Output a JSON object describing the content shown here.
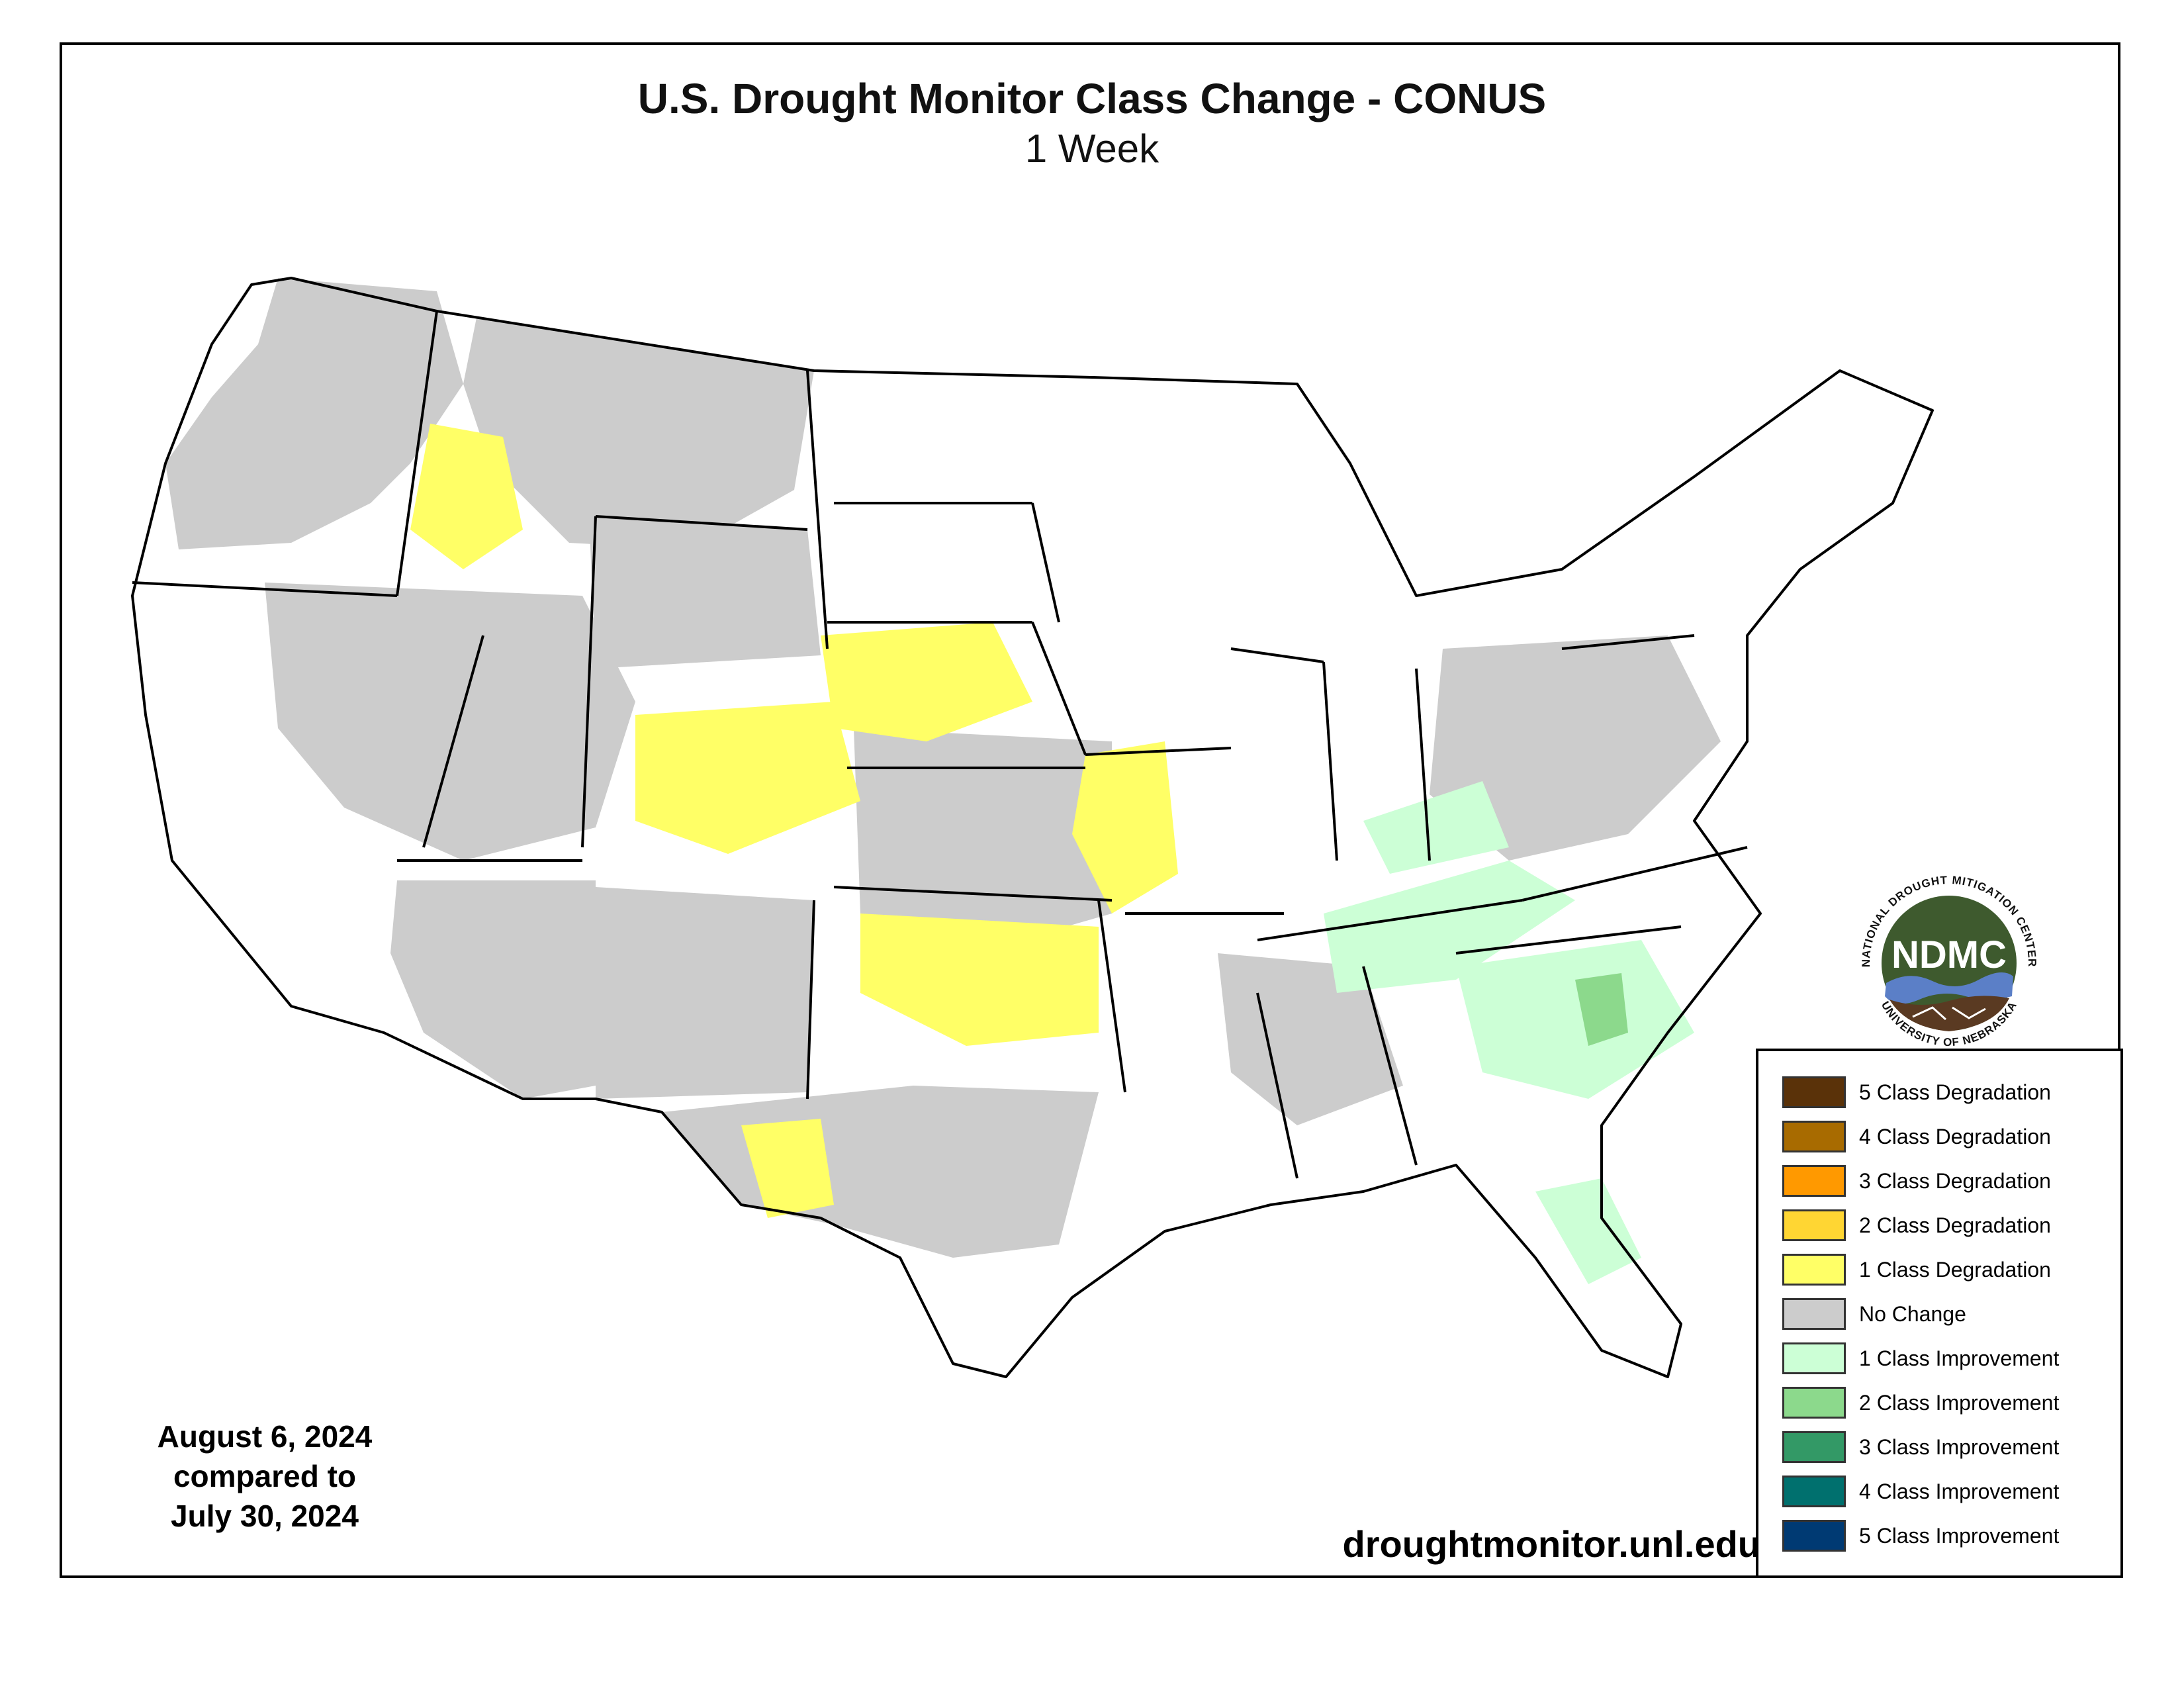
{
  "title": "U.S. Drought Monitor Class Change - CONUS",
  "subtitle": "1 Week",
  "date_block": {
    "line1": "August 6, 2024",
    "line2": "compared to",
    "line3": "July 30, 2024"
  },
  "website": "droughtmonitor.unl.edu",
  "logo": {
    "acronym": "NDMC",
    "ring_top": "NATIONAL DROUGHT MITIGATION CENTER",
    "ring_bottom": "UNIVERSITY OF NEBRASKA",
    "colors": {
      "green": "#3e5a2e",
      "blue": "#5b7fc7",
      "brown": "#5a3a22"
    }
  },
  "legend": [
    {
      "label": "5 Class Degradation",
      "color": "#5a3209"
    },
    {
      "label": "4 Class Degradation",
      "color": "#a86b00"
    },
    {
      "label": "3 Class Degradation",
      "color": "#ff9900"
    },
    {
      "label": "2 Class Degradation",
      "color": "#ffd633"
    },
    {
      "label": "1 Class Degradation",
      "color": "#ffff66"
    },
    {
      "label": "No Change",
      "color": "#cccccc"
    },
    {
      "label": "1 Class Improvement",
      "color": "#ccffd6"
    },
    {
      "label": "2 Class Improvement",
      "color": "#8cd98c"
    },
    {
      "label": "3 Class Improvement",
      "color": "#339966"
    },
    {
      "label": "4 Class Improvement",
      "color": "#00706e"
    },
    {
      "label": "5 Class Improvement",
      "color": "#003a73"
    }
  ],
  "map_regions": [
    {
      "class": "No Change",
      "region": "Pacific Northwest and Idaho"
    },
    {
      "class": "No Change",
      "region": "Montana"
    },
    {
      "class": "No Change",
      "region": "Wyoming"
    },
    {
      "class": "No Change",
      "region": "Great Basin and Utah"
    },
    {
      "class": "No Change",
      "region": "Arizona"
    },
    {
      "class": "No Change",
      "region": "New Mexico"
    },
    {
      "class": "No Change",
      "region": "Texas"
    },
    {
      "class": "No Change",
      "region": "Kansas and Oklahoma"
    },
    {
      "class": "No Change",
      "region": "Ohio Valley and Appalachians"
    },
    {
      "class": "No Change",
      "region": "Gulf Coast interior"
    },
    {
      "class": "1 Class Degradation",
      "region": "Western Montana and Idaho"
    },
    {
      "class": "1 Class Degradation",
      "region": "Colorado and Utah"
    },
    {
      "class": "1 Class Degradation",
      "region": "Nebraska and Kansas"
    },
    {
      "class": "1 Class Degradation",
      "region": "Oklahoma"
    },
    {
      "class": "1 Class Degradation",
      "region": "Missouri"
    },
    {
      "class": "1 Class Degradation",
      "region": "West Texas"
    },
    {
      "class": "1 Class Improvement",
      "region": "Tennessee Valley"
    },
    {
      "class": "1 Class Improvement",
      "region": "Georgia and the Carolinas"
    },
    {
      "class": "1 Class Improvement",
      "region": "Kentucky"
    },
    {
      "class": "1 Class Improvement",
      "region": "Florida"
    },
    {
      "class": "2 Class Improvement",
      "region": "South Carolina"
    }
  ]
}
